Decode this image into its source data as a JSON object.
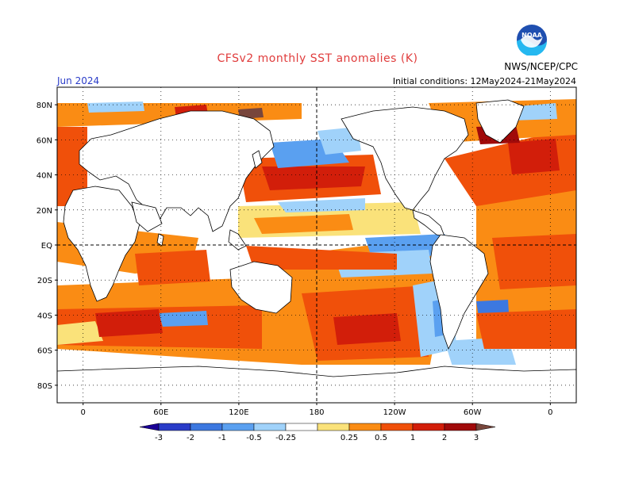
{
  "header": {
    "title": "CFSv2 monthly SST anomalies (K)",
    "month": "Jun 2024",
    "agency": "NWS/NCEP/CPC",
    "initial_conditions": "Initial conditions: 12May2024-21May2024",
    "logo_text": "NOAA"
  },
  "map": {
    "lat_labels": [
      "80N",
      "60N",
      "40N",
      "20N",
      "EQ",
      "20S",
      "40S",
      "60S",
      "80S"
    ],
    "lat_values": [
      80,
      60,
      40,
      20,
      0,
      -20,
      -40,
      -60,
      -80
    ],
    "lon_labels": [
      "0",
      "60E",
      "120E",
      "180",
      "120W",
      "60W",
      "0"
    ],
    "lon_values": [
      0,
      60,
      120,
      180,
      240,
      300,
      360
    ],
    "lon_range": [
      -20,
      380
    ],
    "lat_range": [
      -90,
      90
    ],
    "grid": true
  },
  "legend": {
    "tick_labels": [
      "-3",
      "-2",
      "-1",
      "-0.5",
      "-0.25",
      "0.25",
      "0.5",
      "1",
      "2",
      "3"
    ],
    "colors": [
      "#1a0096",
      "#2a3cc8",
      "#3c78e0",
      "#5aa0f0",
      "#a0d2fa",
      "#ffffff",
      "#fae27a",
      "#fa8c14",
      "#f0500a",
      "#d21e0a",
      "#a00a0a",
      "#78463c"
    ]
  }
}
